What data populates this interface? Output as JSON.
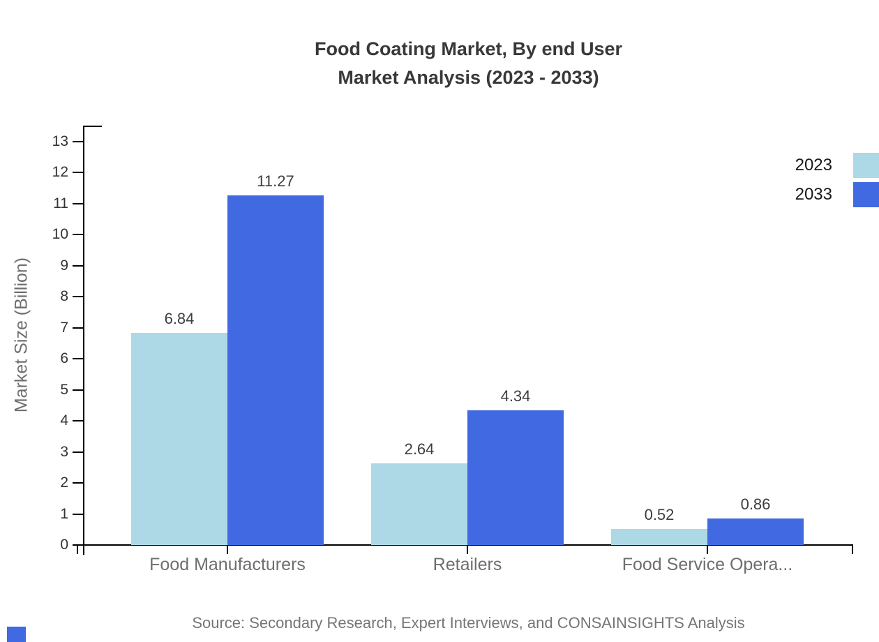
{
  "title": {
    "line1": "Food Coating Market, By end User",
    "line2": "Market Analysis (2023 - 2033)"
  },
  "chart_data": {
    "type": "bar",
    "title": "Food Coating Market, By end User Market Analysis (2023 - 2033)",
    "ylabel": "Market Size (Billion)",
    "xlabel": "",
    "categories": [
      "Food Manufacturers",
      "Retailers",
      "Food Service Opera..."
    ],
    "series": [
      {
        "name": "2023",
        "color": "#add8e6",
        "values": [
          6.84,
          2.64,
          0.52
        ]
      },
      {
        "name": "2033",
        "color": "#4169e1",
        "values": [
          11.27,
          4.34,
          0.86
        ]
      }
    ],
    "ylim": [
      0,
      13
    ],
    "ytick_step": 1,
    "grid": false,
    "legend_position": "top-right",
    "value_label_decimals": 2
  },
  "legend": {
    "items": [
      {
        "label": "2023",
        "color": "#add8e6"
      },
      {
        "label": "2033",
        "color": "#4169e1"
      }
    ]
  },
  "source_note": "Source: Secondary Research, Expert Interviews, and CONSAINSIGHTS Analysis",
  "colors": {
    "axis": "#000000",
    "title_text": "#383838",
    "tick_text": "#333333",
    "muted_text": "#6e6e6e",
    "corner_mark": "#4169e1"
  }
}
